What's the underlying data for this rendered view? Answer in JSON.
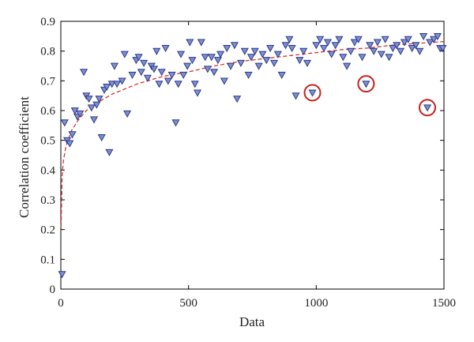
{
  "chart_data": {
    "type": "scatter",
    "xlabel": "Data",
    "ylabel": "Correlation coefficient",
    "xlim": [
      0,
      1500
    ],
    "ylim": [
      0,
      0.9
    ],
    "x_ticks": [
      "0",
      "500",
      "1000",
      "1500"
    ],
    "y_ticks": [
      "0",
      "0.1",
      "0.2",
      "0.3",
      "0.4",
      "0.5",
      "0.6",
      "0.7",
      "0.8",
      "0.9"
    ],
    "grid": false,
    "legend": "none",
    "marker": "triangle-down",
    "marker_fill": "#7f8fd0",
    "marker_edge": "#2b3a8a",
    "trend_color": "#d7322b",
    "highlight_color": "#cc1f1a",
    "points": [
      [
        5,
        0.05
      ],
      [
        15,
        0.56
      ],
      [
        25,
        0.5
      ],
      [
        35,
        0.49
      ],
      [
        45,
        0.52
      ],
      [
        55,
        0.6
      ],
      [
        65,
        0.58
      ],
      [
        75,
        0.59
      ],
      [
        90,
        0.73
      ],
      [
        100,
        0.65
      ],
      [
        110,
        0.64
      ],
      [
        120,
        0.61
      ],
      [
        130,
        0.57
      ],
      [
        140,
        0.62
      ],
      [
        150,
        0.64
      ],
      [
        160,
        0.51
      ],
      [
        170,
        0.67
      ],
      [
        180,
        0.68
      ],
      [
        190,
        0.46
      ],
      [
        200,
        0.69
      ],
      [
        210,
        0.75
      ],
      [
        220,
        0.69
      ],
      [
        240,
        0.7
      ],
      [
        250,
        0.79
      ],
      [
        260,
        0.59
      ],
      [
        280,
        0.72
      ],
      [
        295,
        0.77
      ],
      [
        305,
        0.78
      ],
      [
        315,
        0.73
      ],
      [
        325,
        0.76
      ],
      [
        340,
        0.71
      ],
      [
        355,
        0.75
      ],
      [
        365,
        0.74
      ],
      [
        375,
        0.8
      ],
      [
        385,
        0.69
      ],
      [
        395,
        0.73
      ],
      [
        410,
        0.81
      ],
      [
        420,
        0.7
      ],
      [
        435,
        0.72
      ],
      [
        450,
        0.56
      ],
      [
        460,
        0.69
      ],
      [
        470,
        0.79
      ],
      [
        480,
        0.72
      ],
      [
        495,
        0.75
      ],
      [
        505,
        0.83
      ],
      [
        515,
        0.77
      ],
      [
        525,
        0.69
      ],
      [
        535,
        0.66
      ],
      [
        550,
        0.83
      ],
      [
        565,
        0.78
      ],
      [
        575,
        0.74
      ],
      [
        590,
        0.78
      ],
      [
        600,
        0.73
      ],
      [
        615,
        0.77
      ],
      [
        625,
        0.79
      ],
      [
        640,
        0.7
      ],
      [
        650,
        0.81
      ],
      [
        665,
        0.75
      ],
      [
        680,
        0.82
      ],
      [
        690,
        0.64
      ],
      [
        705,
        0.76
      ],
      [
        720,
        0.8
      ],
      [
        735,
        0.72
      ],
      [
        745,
        0.78
      ],
      [
        760,
        0.8
      ],
      [
        775,
        0.75
      ],
      [
        790,
        0.79
      ],
      [
        805,
        0.77
      ],
      [
        820,
        0.81
      ],
      [
        835,
        0.76
      ],
      [
        850,
        0.79
      ],
      [
        865,
        0.72
      ],
      [
        880,
        0.82
      ],
      [
        895,
        0.84
      ],
      [
        905,
        0.81
      ],
      [
        920,
        0.65
      ],
      [
        935,
        0.77
      ],
      [
        950,
        0.8
      ],
      [
        965,
        0.76
      ],
      [
        985,
        0.66
      ],
      [
        1000,
        0.82
      ],
      [
        1015,
        0.84
      ],
      [
        1030,
        0.81
      ],
      [
        1045,
        0.83
      ],
      [
        1060,
        0.79
      ],
      [
        1075,
        0.82
      ],
      [
        1090,
        0.84
      ],
      [
        1105,
        0.78
      ],
      [
        1120,
        0.75
      ],
      [
        1135,
        0.8
      ],
      [
        1150,
        0.83
      ],
      [
        1165,
        0.84
      ],
      [
        1180,
        0.78
      ],
      [
        1195,
        0.69
      ],
      [
        1210,
        0.82
      ],
      [
        1225,
        0.8
      ],
      [
        1240,
        0.83
      ],
      [
        1255,
        0.79
      ],
      [
        1270,
        0.84
      ],
      [
        1285,
        0.78
      ],
      [
        1300,
        0.81
      ],
      [
        1315,
        0.82
      ],
      [
        1330,
        0.8
      ],
      [
        1345,
        0.83
      ],
      [
        1360,
        0.84
      ],
      [
        1375,
        0.81
      ],
      [
        1390,
        0.82
      ],
      [
        1405,
        0.8
      ],
      [
        1420,
        0.85
      ],
      [
        1435,
        0.61
      ],
      [
        1445,
        0.83
      ],
      [
        1460,
        0.84
      ],
      [
        1475,
        0.85
      ],
      [
        1485,
        0.81
      ],
      [
        1495,
        0.81
      ]
    ],
    "trend": [
      [
        1,
        0.21
      ],
      [
        5,
        0.38
      ],
      [
        10,
        0.43
      ],
      [
        20,
        0.48
      ],
      [
        40,
        0.53
      ],
      [
        70,
        0.57
      ],
      [
        100,
        0.6
      ],
      [
        150,
        0.63
      ],
      [
        200,
        0.655
      ],
      [
        300,
        0.69
      ],
      [
        400,
        0.715
      ],
      [
        500,
        0.73
      ],
      [
        600,
        0.75
      ],
      [
        700,
        0.765
      ],
      [
        800,
        0.775
      ],
      [
        900,
        0.785
      ],
      [
        1000,
        0.795
      ],
      [
        1100,
        0.805
      ],
      [
        1200,
        0.81
      ],
      [
        1300,
        0.82
      ],
      [
        1400,
        0.826
      ],
      [
        1500,
        0.832
      ]
    ],
    "highlighted_points": [
      [
        985,
        0.66
      ],
      [
        1195,
        0.69
      ],
      [
        1435,
        0.61
      ]
    ]
  }
}
